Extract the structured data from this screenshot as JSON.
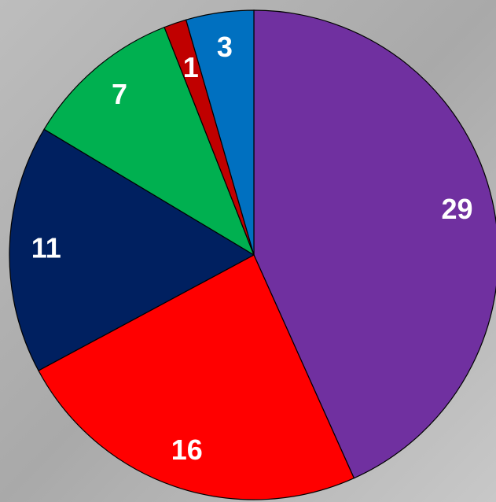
{
  "chart_data": {
    "type": "pie",
    "values": [
      29,
      16,
      11,
      7,
      1,
      3
    ],
    "colors": [
      "#7030a0",
      "#ff0000",
      "#002060",
      "#00b050",
      "#c00000",
      "#0070c0"
    ],
    "start_angle": 0,
    "direction": "clockwise"
  }
}
